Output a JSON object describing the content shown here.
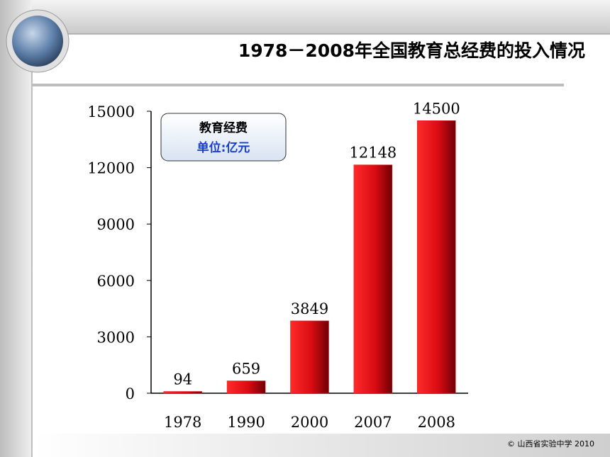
{
  "chart_data": {
    "type": "bar",
    "title": "1978－2008年全国教育总经费的投入情况",
    "legend_title": "教育经费",
    "legend_unit": "单位:亿元",
    "categories": [
      "1978",
      "1990",
      "2000",
      "2007",
      "2008"
    ],
    "values": [
      94,
      659,
      3849,
      12148,
      14500
    ],
    "color": "#e8141c",
    "ylim": [
      0,
      15000
    ],
    "yticks": [
      0,
      3000,
      6000,
      9000,
      12000,
      15000
    ],
    "footer": "© 山西省实验中学 2010"
  }
}
